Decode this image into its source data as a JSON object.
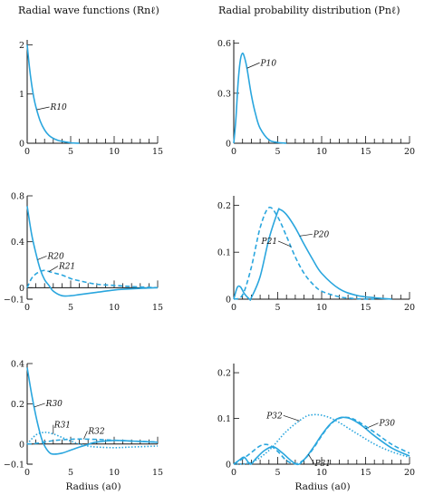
{
  "titles": {
    "left": "Radial wave functions (Rnℓ)",
    "right": "Radial probability distribution (Pnℓ)"
  },
  "x_axis_label": "Radius (a0)",
  "colors": {
    "curve": "#2aa6de",
    "axis": "#111111"
  },
  "chart_data": [
    {
      "type": "line",
      "xlabel": "",
      "ylabel": "",
      "xlim": [
        0,
        15
      ],
      "ylim": [
        0,
        2.1
      ],
      "xticks": [
        "0",
        "5",
        "10",
        "15"
      ],
      "yticks": [
        "0",
        "1",
        "2"
      ],
      "series": [
        {
          "name": "R10",
          "style": "solid",
          "x": [
            0,
            0.25,
            0.5,
            0.75,
            1,
            1.5,
            2,
            2.5,
            3,
            3.5,
            4,
            5,
            6
          ],
          "y": [
            2.0,
            1.56,
            1.21,
            0.94,
            0.74,
            0.45,
            0.27,
            0.16,
            0.1,
            0.06,
            0.04,
            0.01,
            0.0
          ]
        }
      ]
    },
    {
      "type": "line",
      "xlabel": "",
      "ylabel": "",
      "xlim": [
        0,
        20
      ],
      "ylim": [
        0,
        0.62
      ],
      "xticks": [
        "0",
        "5",
        "10",
        "15",
        "20"
      ],
      "yticks": [
        "0",
        "0.3",
        "0.6"
      ],
      "series": [
        {
          "name": "P10",
          "style": "solid",
          "x": [
            0,
            0.25,
            0.5,
            0.75,
            1,
            1.25,
            1.5,
            2,
            2.5,
            3,
            4,
            5,
            6
          ],
          "y": [
            0,
            0.15,
            0.37,
            0.5,
            0.54,
            0.51,
            0.45,
            0.29,
            0.17,
            0.09,
            0.02,
            0.005,
            0
          ]
        }
      ]
    },
    {
      "type": "line",
      "xlabel": "",
      "ylabel": "",
      "xlim": [
        0,
        15
      ],
      "ylim": [
        -0.1,
        0.8
      ],
      "xticks": [
        "0",
        "5",
        "10",
        "15"
      ],
      "yticks": [
        "−0.1",
        "0",
        "0.4",
        "0.8"
      ],
      "series": [
        {
          "name": "R20",
          "style": "solid",
          "x": [
            0,
            0.5,
            1,
            1.5,
            2,
            2.5,
            3,
            4,
            5,
            6,
            8,
            10,
            12,
            15
          ],
          "y": [
            0.71,
            0.47,
            0.3,
            0.16,
            0.07,
            0.02,
            -0.03,
            -0.07,
            -0.07,
            -0.06,
            -0.04,
            -0.02,
            -0.01,
            0.0
          ]
        },
        {
          "name": "R21",
          "style": "dashed",
          "x": [
            0,
            0.5,
            1,
            1.5,
            2,
            3,
            4,
            5,
            6,
            8,
            10,
            12,
            15
          ],
          "y": [
            0,
            0.08,
            0.12,
            0.14,
            0.15,
            0.13,
            0.11,
            0.08,
            0.06,
            0.03,
            0.02,
            0.01,
            0.0
          ]
        }
      ]
    },
    {
      "type": "line",
      "xlabel": "",
      "ylabel": "",
      "xlim": [
        0,
        20
      ],
      "ylim": [
        0,
        0.22
      ],
      "xticks": [
        "0",
        "5",
        "10",
        "15",
        "20"
      ],
      "yticks": [
        "0",
        "0.1",
        "0.2"
      ],
      "series": [
        {
          "name": "P20",
          "style": "solid",
          "x": [
            0,
            0.4,
            0.76,
            1.2,
            1.8,
            2,
            3,
            4,
            5,
            5.24,
            6,
            7,
            8,
            9,
            10,
            12,
            14,
            16,
            18
          ],
          "y": [
            0,
            0.025,
            0.026,
            0.012,
            0.0,
            0.003,
            0.048,
            0.128,
            0.186,
            0.191,
            0.18,
            0.152,
            0.117,
            0.084,
            0.055,
            0.022,
            0.008,
            0.003,
            0.0
          ]
        },
        {
          "name": "P21",
          "style": "dashed",
          "x": [
            0,
            1,
            2,
            3,
            4,
            5,
            6,
            7,
            8,
            9,
            10,
            12,
            14,
            16
          ],
          "y": [
            0,
            0.009,
            0.068,
            0.152,
            0.195,
            0.175,
            0.134,
            0.09,
            0.055,
            0.032,
            0.017,
            0.005,
            0.001,
            0
          ]
        }
      ]
    },
    {
      "type": "line",
      "xlabel": "",
      "ylabel": "",
      "xlim": [
        0,
        15
      ],
      "ylim": [
        -0.1,
        0.4
      ],
      "xticks": [
        "0",
        "5",
        "10",
        "15"
      ],
      "yticks": [
        "−0.1",
        "0",
        "0.2",
        "0.4"
      ],
      "series": [
        {
          "name": "R30",
          "style": "solid",
          "x": [
            0,
            0.5,
            1,
            1.5,
            1.9,
            2.5,
            3,
            4,
            5,
            6,
            7,
            7.1,
            8,
            10,
            12,
            15
          ],
          "y": [
            0.38,
            0.25,
            0.14,
            0.05,
            0.0,
            -0.04,
            -0.05,
            -0.045,
            -0.03,
            -0.015,
            -0.002,
            0.0,
            0.01,
            0.018,
            0.015,
            0.009
          ]
        },
        {
          "name": "R31",
          "style": "dotted",
          "x": [
            0,
            1,
            2,
            3,
            4,
            5,
            6,
            7,
            8,
            10,
            12,
            15
          ],
          "y": [
            0,
            0.045,
            0.058,
            0.05,
            0.033,
            0.015,
            0.0,
            -0.01,
            -0.015,
            -0.018,
            -0.015,
            -0.01
          ]
        },
        {
          "name": "R32",
          "style": "dashed",
          "x": [
            0,
            1,
            2,
            3,
            4,
            5,
            6,
            8,
            10,
            12,
            15
          ],
          "y": [
            0,
            0.003,
            0.01,
            0.017,
            0.021,
            0.024,
            0.025,
            0.023,
            0.019,
            0.015,
            0.01
          ]
        }
      ]
    },
    {
      "type": "line",
      "xlabel": "",
      "ylabel": "",
      "xlim": [
        0,
        20
      ],
      "ylim": [
        0,
        0.22
      ],
      "xticks": [
        "0",
        "5",
        "10",
        "15",
        "20"
      ],
      "yticks": [
        "0",
        "0.1",
        "0.2"
      ],
      "series": [
        {
          "name": "P30",
          "style": "solid",
          "x": [
            0,
            0.7,
            1.2,
            1.9,
            2.5,
            3.5,
            4.5,
            5.5,
            7.1,
            8,
            9,
            10,
            11,
            12,
            13,
            14,
            15,
            16,
            18,
            20
          ],
          "y": [
            0,
            0.01,
            0.015,
            0.0,
            0.012,
            0.03,
            0.038,
            0.025,
            0.0,
            0.01,
            0.035,
            0.064,
            0.088,
            0.101,
            0.101,
            0.092,
            0.078,
            0.062,
            0.035,
            0.018
          ]
        },
        {
          "name": "P31",
          "style": "dashed",
          "x": [
            0,
            1.5,
            3,
            4,
            5,
            6,
            7,
            8,
            9,
            10,
            11,
            12,
            13,
            14,
            16,
            18,
            20
          ],
          "y": [
            0,
            0.018,
            0.04,
            0.042,
            0.028,
            0.008,
            0.001,
            0.01,
            0.033,
            0.062,
            0.087,
            0.1,
            0.102,
            0.095,
            0.07,
            0.043,
            0.024
          ]
        },
        {
          "name": "P32",
          "style": "dotted",
          "x": [
            0,
            2,
            4,
            6,
            8,
            9,
            10,
            11,
            12,
            14,
            16,
            18,
            20
          ],
          "y": [
            0,
            0.004,
            0.03,
            0.072,
            0.102,
            0.108,
            0.107,
            0.101,
            0.091,
            0.067,
            0.044,
            0.027,
            0.015
          ]
        }
      ]
    }
  ]
}
